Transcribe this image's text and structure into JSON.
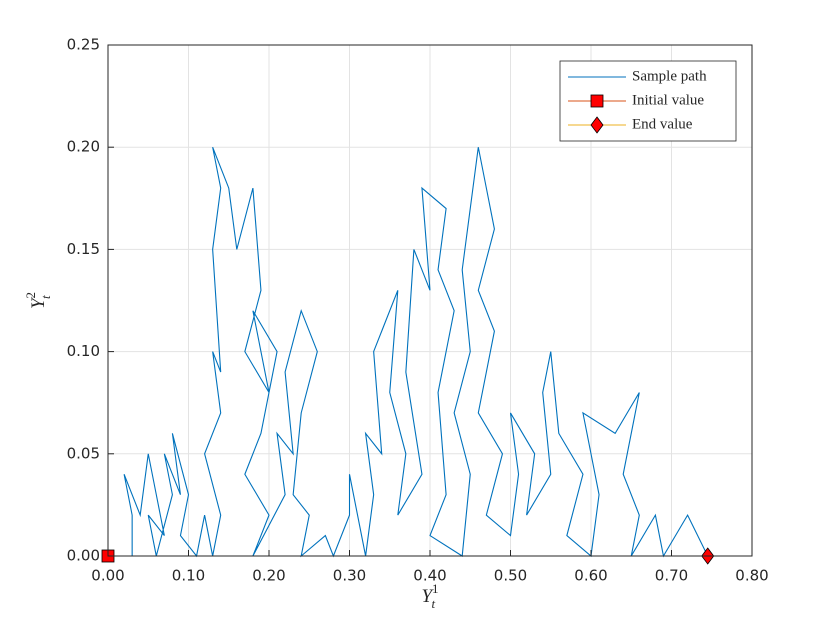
{
  "chart_data": {
    "type": "line",
    "xlabel": {
      "symbol": "Y",
      "subscript": "t",
      "superscript": "1"
    },
    "ylabel": {
      "symbol": "Y",
      "subscript": "t",
      "superscript": "2"
    },
    "xlim": [
      0,
      0.8
    ],
    "xticks": [
      {
        "value": 0,
        "label": "0.00"
      },
      {
        "value": 0.1,
        "label": "0.10"
      },
      {
        "value": 0.2,
        "label": "0.20"
      },
      {
        "value": 0.3,
        "label": "0.30"
      },
      {
        "value": 0.4,
        "label": "0.40"
      },
      {
        "value": 0.5,
        "label": "0.50"
      },
      {
        "value": 0.6,
        "label": "0.60"
      },
      {
        "value": 0.7,
        "label": "0.70"
      },
      {
        "value": 0.8,
        "label": "0.80"
      }
    ],
    "ylim": [
      0,
      0.25
    ],
    "yticks": [
      {
        "value": 0,
        "label": "0.00"
      },
      0.05,
      {
        "value": 0.1,
        "label": "0.10"
      },
      0.15,
      {
        "value": 0.2,
        "label": "0.20"
      },
      0.25
    ],
    "grid": true,
    "legend": "northeast",
    "series": [
      {
        "name": "Sample path",
        "color": "#0072bd",
        "x": [
          0,
          0.03,
          0.03,
          0.02,
          0.04,
          0.05,
          0.06,
          0.07,
          0.05,
          0.06,
          0.08,
          0.07,
          0.09,
          0.08,
          0.1,
          0.09,
          0.11,
          0.12,
          0.13,
          0.14,
          0.12,
          0.14,
          0.13,
          0.14,
          0.13,
          0.14,
          0.13,
          0.15,
          0.16,
          0.18,
          0.19,
          0.17,
          0.2,
          0.18,
          0.21,
          0.19,
          0.17,
          0.2,
          0.18,
          0.22,
          0.21,
          0.23,
          0.22,
          0.24,
          0.26,
          0.24,
          0.23,
          0.25,
          0.24,
          0.27,
          0.28,
          0.3,
          0.3,
          0.32,
          0.33,
          0.32,
          0.34,
          0.33,
          0.36,
          0.35,
          0.37,
          0.36,
          0.39,
          0.37,
          0.38,
          0.4,
          0.39,
          0.42,
          0.41,
          0.43,
          0.41,
          0.42,
          0.4,
          0.44,
          0.45,
          0.43,
          0.45,
          0.44,
          0.46,
          0.47,
          0.48,
          0.46,
          0.48,
          0.46,
          0.49,
          0.47,
          0.5,
          0.51,
          0.5,
          0.53,
          0.52,
          0.55,
          0.54,
          0.55,
          0.56,
          0.59,
          0.57,
          0.6,
          0.61,
          0.59,
          0.63,
          0.66,
          0.64,
          0.66,
          0.65,
          0.68,
          0.69,
          0.72,
          0.745
        ],
        "values": [
          0,
          0,
          0.02,
          0.04,
          0.02,
          0.05,
          0.03,
          0.01,
          0.02,
          0,
          0.03,
          0.05,
          0.03,
          0.06,
          0.03,
          0.01,
          0,
          0.02,
          0,
          0.02,
          0.05,
          0.07,
          0.1,
          0.09,
          0.15,
          0.18,
          0.2,
          0.18,
          0.15,
          0.18,
          0.13,
          0.1,
          0.08,
          0.12,
          0.1,
          0.06,
          0.04,
          0.02,
          0,
          0.03,
          0.06,
          0.05,
          0.09,
          0.12,
          0.1,
          0.07,
          0.03,
          0.02,
          0,
          0.01,
          0,
          0.02,
          0.04,
          0,
          0.03,
          0.06,
          0.05,
          0.1,
          0.13,
          0.08,
          0.05,
          0.02,
          0.04,
          0.09,
          0.15,
          0.13,
          0.18,
          0.17,
          0.14,
          0.12,
          0.08,
          0.03,
          0.01,
          0,
          0.04,
          0.07,
          0.1,
          0.14,
          0.2,
          0.18,
          0.16,
          0.13,
          0.11,
          0.07,
          0.05,
          0.02,
          0.01,
          0.04,
          0.07,
          0.05,
          0.02,
          0.04,
          0.08,
          0.1,
          0.06,
          0.04,
          0.01,
          0,
          0.03,
          0.07,
          0.06,
          0.08,
          0.04,
          0.02,
          0,
          0.02,
          0,
          0.02,
          0
        ]
      },
      {
        "name": "Initial value",
        "color": "#d95319",
        "marker": "square",
        "marker_color": "#ff0000",
        "x": [
          0
        ],
        "values": [
          0
        ]
      },
      {
        "name": "End value",
        "color": "#edb120",
        "marker": "diamond",
        "marker_color": "#ff0000",
        "x": [
          0.745
        ],
        "values": [
          0
        ]
      }
    ]
  }
}
